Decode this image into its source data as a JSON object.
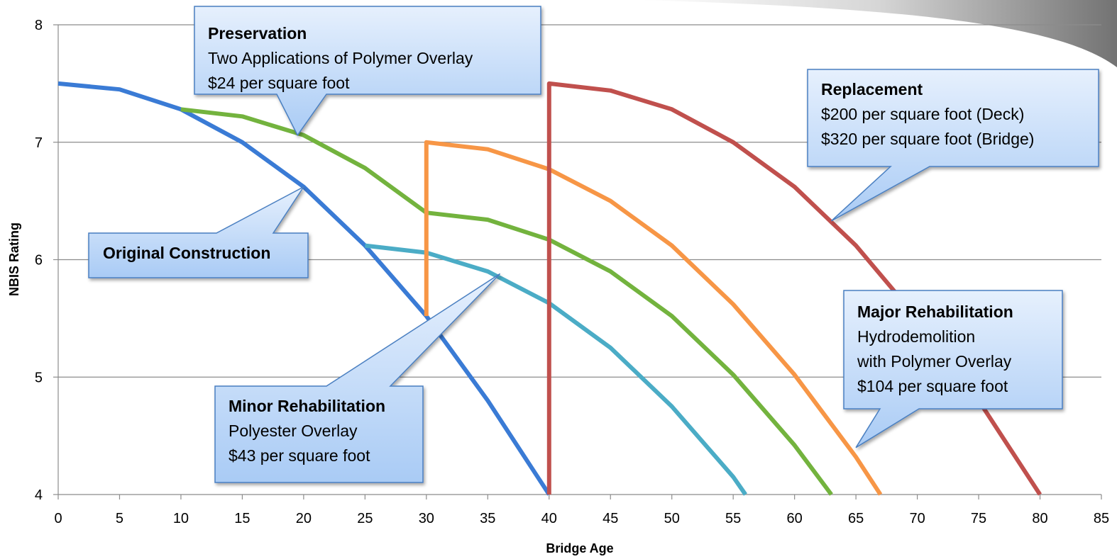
{
  "chart_data": {
    "type": "line",
    "title": "",
    "xlabel": "Bridge Age",
    "ylabel": "NBIS Rating",
    "xlim": [
      0,
      85
    ],
    "ylim": [
      4,
      8
    ],
    "xticks": [
      0,
      5,
      10,
      15,
      20,
      25,
      30,
      35,
      40,
      45,
      50,
      55,
      60,
      65,
      70,
      75,
      80,
      85
    ],
    "yticks": [
      4,
      5,
      6,
      7,
      8
    ],
    "grid": "horizontal",
    "series": [
      {
        "color": "#3a7bd5",
        "points": [
          [
            0,
            7.5
          ],
          [
            5,
            7.45
          ],
          [
            10,
            7.28
          ],
          [
            15,
            7.0
          ],
          [
            20,
            6.62
          ],
          [
            25,
            6.12
          ],
          [
            30,
            5.52
          ],
          [
            35,
            4.8
          ],
          [
            40,
            4.0
          ]
        ]
      },
      {
        "color": "#73b33e",
        "points": [
          [
            10,
            7.28
          ],
          [
            15,
            7.22
          ],
          [
            20,
            7.06
          ],
          [
            25,
            6.78
          ],
          [
            30,
            6.4
          ],
          [
            35,
            6.34
          ],
          [
            40,
            6.17
          ],
          [
            45,
            5.9
          ],
          [
            50,
            5.52
          ],
          [
            55,
            5.02
          ],
          [
            60,
            4.42
          ],
          [
            63,
            4.0
          ]
        ]
      },
      {
        "color": "#4bacc6",
        "points": [
          [
            25,
            6.12
          ],
          [
            30,
            6.06
          ],
          [
            35,
            5.9
          ],
          [
            40,
            5.63
          ],
          [
            45,
            5.25
          ],
          [
            50,
            4.75
          ],
          [
            55,
            4.15
          ],
          [
            56,
            4.0
          ]
        ]
      },
      {
        "color": "#f79646",
        "points": [
          [
            30,
            5.52
          ],
          [
            30,
            7.0
          ],
          [
            35,
            6.94
          ],
          [
            40,
            6.77
          ],
          [
            45,
            6.5
          ],
          [
            50,
            6.12
          ],
          [
            55,
            5.62
          ],
          [
            60,
            5.02
          ],
          [
            65,
            4.32
          ],
          [
            67,
            4.0
          ]
        ]
      },
      {
        "color": "#c0504d",
        "points": [
          [
            40,
            4.0
          ],
          [
            40,
            7.5
          ],
          [
            45,
            7.44
          ],
          [
            50,
            7.28
          ],
          [
            55,
            7.0
          ],
          [
            60,
            6.62
          ],
          [
            65,
            6.12
          ],
          [
            70,
            5.5
          ],
          [
            75,
            4.8
          ],
          [
            80,
            4.0
          ]
        ]
      }
    ],
    "annotations": [
      {
        "id": "preservation",
        "title": "Preservation",
        "lines": [
          "Two Applications of Polymer Overlay",
          "$24 per square foot"
        ],
        "points_to": [
          19.5,
          7.06
        ]
      },
      {
        "id": "original",
        "title": "Original Construction",
        "lines": [],
        "points_to": [
          20,
          6.62
        ]
      },
      {
        "id": "minor",
        "title": "Minor Rehabilitation",
        "lines": [
          "Polyester Overlay",
          "$43 per square foot"
        ],
        "points_to": [
          36,
          5.88
        ]
      },
      {
        "id": "replacement",
        "title": "Replacement",
        "lines": [
          "$200 per square foot (Deck)",
          "$320 per square foot (Bridge)"
        ],
        "points_to": [
          63,
          6.33
        ]
      },
      {
        "id": "major",
        "title": "Major Rehabilitation",
        "lines": [
          "Hydrodemolition",
          "with Polymer Overlay",
          "$104 per square foot"
        ],
        "points_to": [
          65,
          4.4
        ]
      }
    ]
  }
}
